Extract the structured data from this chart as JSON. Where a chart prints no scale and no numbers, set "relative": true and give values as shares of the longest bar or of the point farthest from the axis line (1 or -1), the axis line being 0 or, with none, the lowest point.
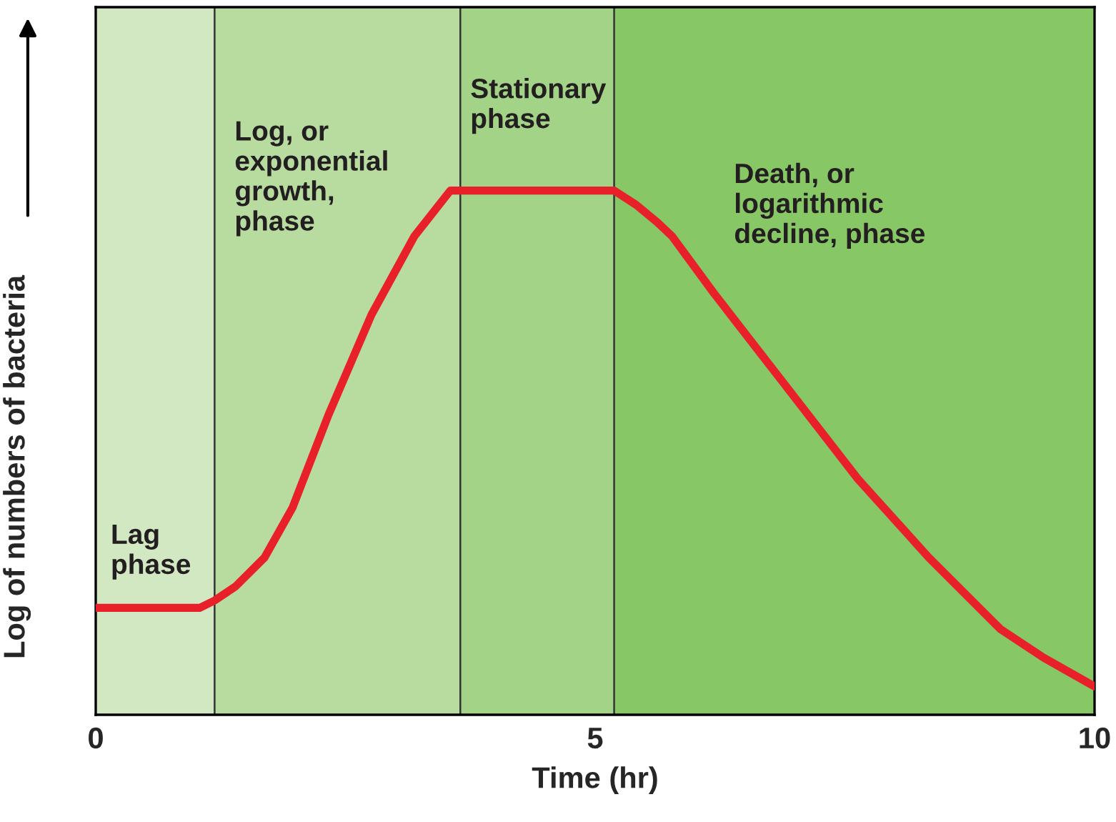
{
  "chart_data": {
    "type": "line",
    "xlabel": "Time (hr)",
    "ylabel": "Log of numbers of bacteria",
    "relative": true,
    "xlim": [
      0,
      10
    ],
    "xticks": [
      0,
      5,
      10
    ],
    "grid": false,
    "legend": false,
    "marker": "none",
    "line_style": "solid",
    "series": [
      {
        "color": "#e8202a",
        "x": [
          0,
          1.04,
          1.19,
          1.4,
          1.69,
          1.97,
          2.33,
          2.76,
          3.19,
          3.55,
          5.19,
          5.41,
          5.62,
          5.77,
          6.19,
          6.91,
          7.63,
          8.34,
          9.06,
          9.49,
          10
        ],
        "values": [
          0.204,
          0.204,
          0.218,
          0.245,
          0.3,
          0.395,
          0.572,
          0.763,
          0.913,
          1.0,
          1.0,
          0.973,
          0.94,
          0.913,
          0.804,
          0.627,
          0.45,
          0.3,
          0.163,
          0.109,
          0.054
        ]
      }
    ],
    "bands": [
      {
        "axis": "x",
        "from": 0,
        "to": 1.19,
        "label": "Lag\nphase",
        "color": "#d1e8c2"
      },
      {
        "axis": "x",
        "from": 1.19,
        "to": 3.65,
        "label": "Log, or\nexponential\ngrowth,\nphase",
        "color": "#b8dca0"
      },
      {
        "axis": "x",
        "from": 3.65,
        "to": 5.19,
        "label": "Stationary\nphase",
        "color": "#a2d386"
      },
      {
        "axis": "x",
        "from": 5.19,
        "to": 10,
        "label": "Death, or\nlogarithmic\ndecline, phase",
        "color": "#88c766"
      }
    ]
  }
}
